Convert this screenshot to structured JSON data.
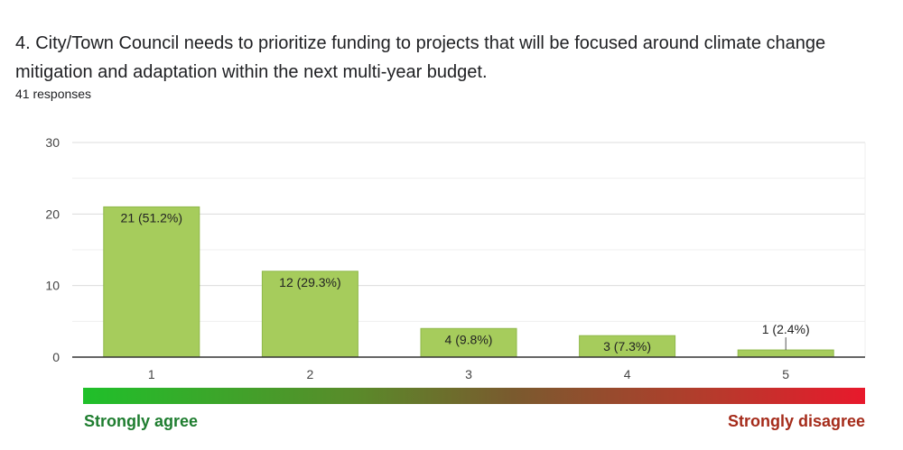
{
  "question": {
    "title": "4. City/Town Council needs to prioritize funding to projects that will be focused around climate change mitigation and adaptation within the next multi-year budget.",
    "responses": "41 responses"
  },
  "chart_data": {
    "type": "bar",
    "categories": [
      "1",
      "2",
      "3",
      "4",
      "5"
    ],
    "values": [
      21,
      12,
      4,
      3,
      1
    ],
    "data_labels": [
      "21 (51.2%)",
      "12 (29.3%)",
      "4 (9.8%)",
      "3 (7.3%)",
      "1 (2.4%)"
    ],
    "y_ticks": [
      0,
      10,
      20,
      30
    ],
    "ylim": [
      0,
      30
    ],
    "title": "",
    "xlabel": "",
    "ylabel": "",
    "grid": true,
    "bar_color": "#a6cc5c",
    "bar_border_color": "#8fb84a"
  },
  "scale": {
    "left_label": "Strongly agree",
    "right_label": "Strongly disagree",
    "left_color": "#1e7d2f",
    "right_color": "#a52b1a"
  }
}
